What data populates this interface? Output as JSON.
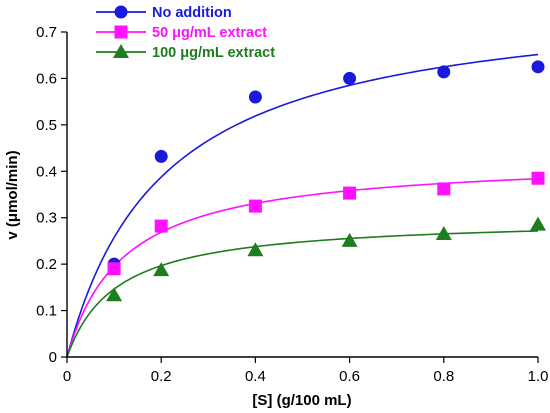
{
  "chart_data": {
    "type": "scatter",
    "title": "",
    "xlabel": "[S] (g/100 mL)",
    "ylabel": "v (μmol/min)",
    "xlim": [
      0,
      1.0
    ],
    "ylim": [
      0,
      0.7
    ],
    "xticks": [
      "0",
      "0.2",
      "0.4",
      "0.6",
      "0.8",
      "1.0"
    ],
    "yticks": [
      "0",
      "0.1",
      "0.2",
      "0.3",
      "0.4",
      "0.5",
      "0.6",
      "0.7"
    ],
    "grid": false,
    "legend_position": "top-left",
    "series": [
      {
        "name": "No addition",
        "color": "#1a1adc",
        "marker": "circle",
        "x": [
          0.1,
          0.2,
          0.4,
          0.6,
          0.8,
          1.0
        ],
        "y": [
          0.2,
          0.432,
          0.56,
          0.6,
          0.614,
          0.625
        ],
        "fit": {
          "model": "michaelis-menten",
          "vmax": 0.785,
          "km": 0.205
        }
      },
      {
        "name": "50 μg/mL extract",
        "color": "#ff10ff",
        "marker": "square",
        "x": [
          0.1,
          0.2,
          0.4,
          0.6,
          0.8,
          1.0
        ],
        "y": [
          0.19,
          0.282,
          0.325,
          0.353,
          0.362,
          0.385
        ],
        "fit": {
          "model": "michaelis-menten",
          "vmax": 0.43,
          "km": 0.12
        }
      },
      {
        "name": "100 μg/mL extract",
        "color": "#1e7d1e",
        "marker": "triangle",
        "x": [
          0.1,
          0.2,
          0.4,
          0.6,
          0.8,
          1.0
        ],
        "y": [
          0.133,
          0.187,
          0.23,
          0.25,
          0.265,
          0.285
        ],
        "fit": {
          "model": "michaelis-menten",
          "vmax": 0.3,
          "km": 0.105
        }
      }
    ]
  }
}
